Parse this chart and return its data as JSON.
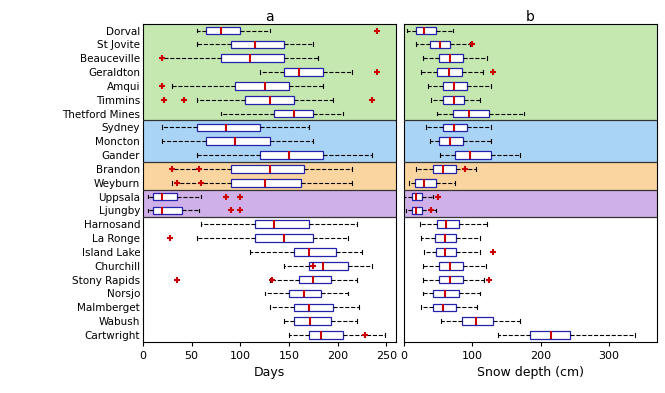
{
  "sites": [
    "Dorval",
    "St Jovite",
    "Beauceville",
    "Geraldton",
    "Amqui",
    "Timmins",
    "Thetford Mines",
    "Sydney",
    "Moncton",
    "Gander",
    "Brandon",
    "Weyburn",
    "Uppsala",
    "Ljungby",
    "Harnosand",
    "La Ronge",
    "Island Lake",
    "Churchill",
    "Stony Rapids",
    "Norsjo",
    "Malmberget",
    "Wabush",
    "Cartwright"
  ],
  "groups": [
    {
      "indices": [
        0,
        1,
        2,
        3,
        4,
        5,
        6
      ],
      "color": "#c5e8b0"
    },
    {
      "indices": [
        7,
        8,
        9
      ],
      "color": "#aad4f5"
    },
    {
      "indices": [
        10,
        11
      ],
      "color": "#fad5a0"
    },
    {
      "indices": [
        12,
        13
      ],
      "color": "#d0b0e8"
    },
    {
      "indices": [
        14,
        15,
        16,
        17,
        18,
        19,
        20,
        21,
        22
      ],
      "color": "#ffffff"
    }
  ],
  "panel_a": {
    "whislo": [
      55,
      55,
      20,
      120,
      30,
      55,
      80,
      20,
      20,
      55,
      30,
      30,
      5,
      5,
      60,
      55,
      110,
      145,
      130,
      125,
      130,
      145,
      150
    ],
    "q1": [
      65,
      90,
      80,
      145,
      95,
      105,
      135,
      55,
      65,
      120,
      90,
      90,
      10,
      10,
      115,
      115,
      155,
      170,
      160,
      150,
      155,
      155,
      170
    ],
    "med": [
      80,
      115,
      110,
      160,
      125,
      130,
      155,
      85,
      95,
      150,
      130,
      125,
      20,
      20,
      135,
      145,
      170,
      185,
      175,
      165,
      170,
      172,
      183
    ],
    "q3": [
      100,
      145,
      145,
      185,
      150,
      155,
      175,
      120,
      130,
      185,
      165,
      162,
      35,
      40,
      170,
      175,
      198,
      210,
      193,
      183,
      195,
      193,
      205
    ],
    "whishi": [
      130,
      175,
      180,
      215,
      185,
      195,
      205,
      170,
      175,
      235,
      215,
      215,
      60,
      58,
      220,
      210,
      225,
      235,
      220,
      210,
      222,
      220,
      248
    ],
    "fliers": [
      [
        [
          240
        ],
        [
          0
        ]
      ],
      [
        [],
        []
      ],
      [
        [
          20
        ],
        [
          2
        ]
      ],
      [
        [
          240
        ],
        [
          3
        ]
      ],
      [
        [
          20
        ],
        [
          4
        ]
      ],
      [
        [
          22,
          42,
          235
        ],
        [
          5,
          5,
          5
        ]
      ],
      [
        [],
        []
      ],
      [
        [],
        []
      ],
      [
        [],
        []
      ],
      [
        [],
        []
      ],
      [
        [
          30,
          58
        ],
        [
          10,
          10
        ]
      ],
      [
        [
          35,
          60
        ],
        [
          11,
          11
        ]
      ],
      [
        [
          85,
          100
        ],
        [
          12,
          12
        ]
      ],
      [
        [
          90,
          100
        ],
        [
          13,
          13
        ]
      ],
      [
        [],
        []
      ],
      [
        [
          28
        ],
        [
          15
        ]
      ],
      [
        [],
        []
      ],
      [
        [
          175
        ],
        [
          17
        ]
      ],
      [
        [
          35,
          132
        ],
        [
          18,
          18
        ]
      ],
      [
        [],
        []
      ],
      [
        [],
        []
      ],
      [
        [],
        []
      ],
      [
        [
          228
        ],
        [
          22
        ]
      ]
    ]
  },
  "panel_b": {
    "whislo": [
      5,
      18,
      28,
      25,
      35,
      40,
      48,
      33,
      38,
      53,
      18,
      8,
      0,
      3,
      23,
      25,
      30,
      28,
      28,
      28,
      25,
      55,
      138
    ],
    "q1": [
      18,
      38,
      52,
      48,
      58,
      58,
      72,
      58,
      52,
      75,
      42,
      17,
      12,
      12,
      48,
      46,
      47,
      51,
      52,
      43,
      42,
      85,
      185
    ],
    "med": [
      30,
      53,
      68,
      66,
      73,
      73,
      95,
      73,
      67,
      97,
      58,
      30,
      18,
      18,
      62,
      60,
      60,
      67,
      67,
      60,
      57,
      105,
      215
    ],
    "q3": [
      47,
      67,
      87,
      85,
      92,
      88,
      125,
      93,
      87,
      127,
      77,
      47,
      27,
      27,
      80,
      77,
      77,
      87,
      87,
      80,
      77,
      130,
      243
    ],
    "whishi": [
      72,
      97,
      122,
      116,
      127,
      112,
      175,
      127,
      127,
      170,
      106,
      75,
      43,
      47,
      122,
      112,
      112,
      120,
      117,
      112,
      107,
      170,
      338
    ],
    "fliers": [
      [
        [],
        []
      ],
      [
        [
          100
        ],
        [
          1
        ]
      ],
      [
        [],
        []
      ],
      [
        [
          130
        ],
        [
          3
        ]
      ],
      [
        [],
        []
      ],
      [
        [],
        []
      ],
      [
        [],
        []
      ],
      [
        [],
        []
      ],
      [
        [],
        []
      ],
      [
        [],
        []
      ],
      [
        [
          90
        ],
        [
          10
        ]
      ],
      [
        [],
        []
      ],
      [
        [
          50
        ],
        [
          12
        ]
      ],
      [
        [
          40
        ],
        [
          13
        ]
      ],
      [
        [],
        []
      ],
      [
        [],
        []
      ],
      [
        [
          130
        ],
        [
          16
        ]
      ],
      [
        [],
        []
      ],
      [
        [
          125
        ],
        [
          18
        ]
      ],
      [
        [],
        []
      ],
      [
        [],
        []
      ],
      [
        [],
        []
      ],
      [
        [],
        []
      ]
    ]
  },
  "xlim_a": [
    0,
    260
  ],
  "xlim_b": [
    0,
    370
  ],
  "xticks_a": [
    0,
    50,
    100,
    150,
    200,
    250
  ],
  "xticks_b": [
    0,
    100,
    200,
    300
  ],
  "xlabel_a": "Days",
  "xlabel_b": "Snow depth (cm)",
  "title_a": "a",
  "title_b": "b",
  "box_edgecolor": "#2222aa",
  "box_facecolor": "#ffffff",
  "median_color": "#cc0000",
  "flier_color": "#cc0000",
  "separator_color": "#333333",
  "tick_color": "#333333"
}
